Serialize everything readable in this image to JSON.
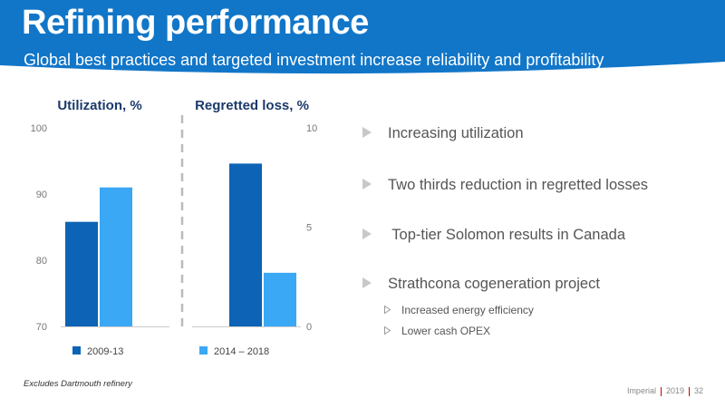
{
  "header": {
    "title": "Refining performance",
    "subtitle": "Global best practices and targeted investment increase reliability and profitability"
  },
  "colors": {
    "header_bg": "#1176c8",
    "series_dark": "#0d63b5",
    "series_light": "#3aa8f5",
    "divider": "#bbbbbb",
    "heading": "#1b3a6b"
  },
  "chart_data": [
    {
      "type": "bar",
      "title": "Utilization, %",
      "categories": [
        "Utilization"
      ],
      "series": [
        {
          "name": "2009-13",
          "values": [
            85.8
          ]
        },
        {
          "name": "2014 – 2018",
          "values": [
            91.0
          ]
        }
      ],
      "ylim": [
        70,
        100
      ],
      "yticks": [
        "70",
        "80",
        "90",
        "100"
      ],
      "axis": "left"
    },
    {
      "type": "bar",
      "title": "Regretted loss, %",
      "categories": [
        "Regretted loss"
      ],
      "series": [
        {
          "name": "2009-13",
          "values": [
            8.2
          ]
        },
        {
          "name": "2014 – 2018",
          "values": [
            2.7
          ]
        }
      ],
      "ylim": [
        0,
        10
      ],
      "yticks": [
        "0",
        "5",
        "10"
      ],
      "axis": "right"
    }
  ],
  "legend": [
    {
      "label": "2009-13",
      "color": "#0d63b5"
    },
    {
      "label": "2014 – 2018",
      "color": "#3aa8f5"
    }
  ],
  "bullets": [
    {
      "text": "Increasing utilization"
    },
    {
      "text": "Two thirds reduction in regretted losses"
    },
    {
      "text": " Top-tier Solomon results in Canada"
    },
    {
      "text": "Strathcona cogeneration project"
    }
  ],
  "sub_bullets": [
    {
      "text": "Increased energy efficiency"
    },
    {
      "text": "Lower cash OPEX"
    }
  ],
  "footnote": "Excludes Dartmouth refinery",
  "footer": {
    "company": "Imperial",
    "year": "2019",
    "page": "32"
  }
}
